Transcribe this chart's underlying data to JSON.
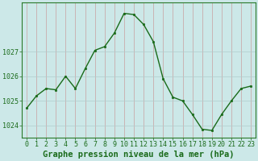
{
  "x": [
    0,
    1,
    2,
    3,
    4,
    5,
    6,
    7,
    8,
    9,
    10,
    11,
    12,
    13,
    14,
    15,
    16,
    17,
    18,
    19,
    20,
    21,
    22,
    23
  ],
  "y": [
    1024.7,
    1025.2,
    1025.5,
    1025.45,
    1026.0,
    1025.5,
    1026.3,
    1027.05,
    1027.2,
    1027.75,
    1028.55,
    1028.5,
    1028.1,
    1027.4,
    1025.9,
    1025.15,
    1025.0,
    1024.45,
    1023.85,
    1023.8,
    1024.45,
    1025.0,
    1025.5,
    1025.6
  ],
  "line_color": "#1a6b1a",
  "marker_color": "#1a6b1a",
  "bg_color": "#cce8e8",
  "grid_color": "#b0cccc",
  "plot_bg": "#cce8e8",
  "ylim": [
    1023.5,
    1029.0
  ],
  "yticks": [
    1024,
    1025,
    1026,
    1027
  ],
  "xlim": [
    -0.5,
    23.5
  ],
  "xlabel": "Graphe pression niveau de la mer (hPa)",
  "xlabel_fontsize": 7.5,
  "tick_fontsize": 6.0,
  "title_color": "#1a6b1a",
  "tick_color": "#1a6b1a",
  "spine_color": "#2a7a2a",
  "vgrid_color": "#c8a0a0",
  "hgrid_color": "#b0cccc"
}
